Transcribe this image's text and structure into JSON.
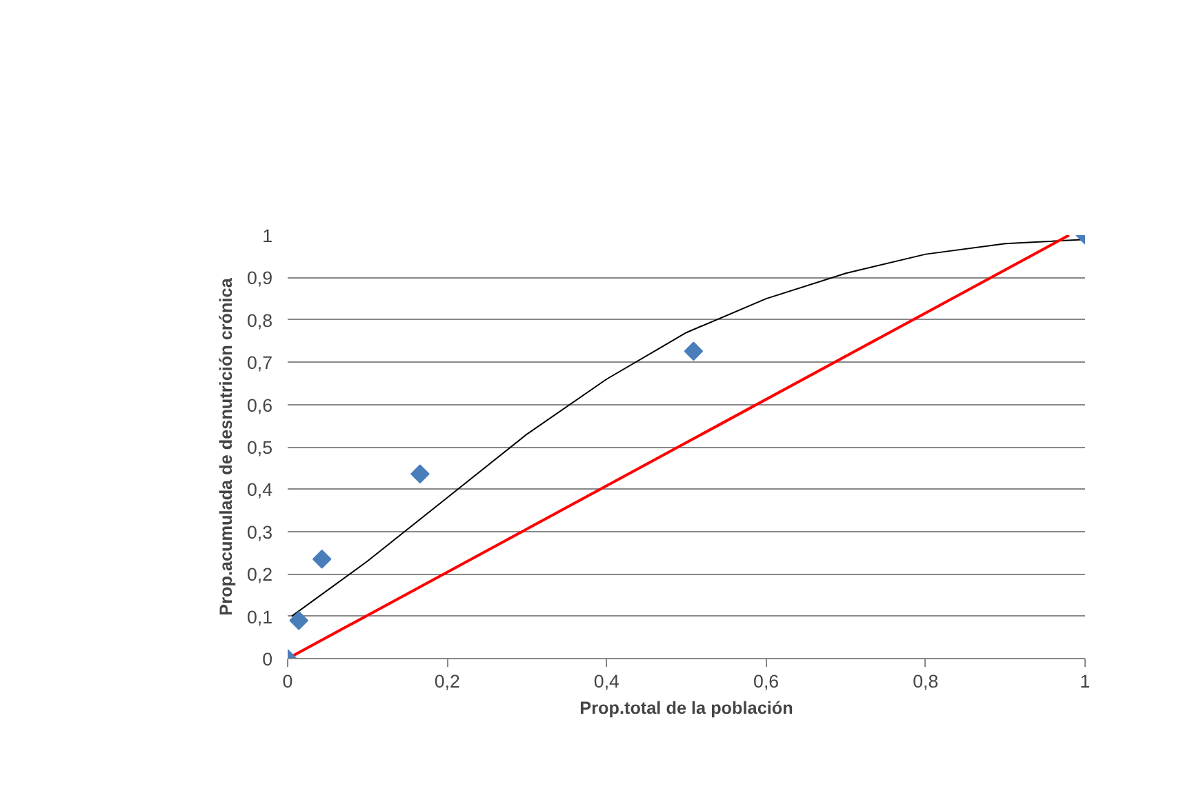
{
  "chart_data": {
    "type": "scatter",
    "xlabel": "Prop.total de la población",
    "ylabel": "Prop.acumulada de desnutrición crónica",
    "xlim": [
      0,
      1
    ],
    "ylim": [
      0,
      1
    ],
    "xticks": [
      0,
      {
        "value": 0.2,
        "label": "0,2"
      },
      {
        "value": 0.4,
        "label": "0,4"
      },
      {
        "value": 0.6,
        "label": "0,6"
      },
      {
        "value": 0.8,
        "label": "0,8"
      },
      1
    ],
    "yticks": [
      0,
      {
        "value": 0.1,
        "label": "0,1"
      },
      {
        "value": 0.2,
        "label": "0,2"
      },
      {
        "value": 0.3,
        "label": "0,3"
      },
      {
        "value": 0.4,
        "label": "0,4"
      },
      {
        "value": 0.5,
        "label": "0,5"
      },
      {
        "value": 0.6,
        "label": "0,6"
      },
      {
        "value": 0.7,
        "label": "0,7"
      },
      {
        "value": 0.8,
        "label": "0,8"
      },
      {
        "value": 0.9,
        "label": "0,9"
      },
      1
    ],
    "grid": "y",
    "marker": "diamond",
    "series": [
      {
        "type": "line",
        "marker": "none",
        "color": "#000000",
        "x": [
          0.005,
          0.1,
          0.2,
          0.3,
          0.4,
          0.5,
          0.6,
          0.7,
          0.8,
          0.9,
          1.0
        ],
        "values": [
          0.1,
          0.23,
          0.38,
          0.53,
          0.66,
          0.77,
          0.85,
          0.91,
          0.955,
          0.98,
          0.99
        ]
      },
      {
        "type": "line",
        "marker": "none",
        "color": "#ff0000",
        "x": [
          0,
          0.98
        ],
        "values": [
          0,
          1.0
        ]
      },
      {
        "color": "#4a7ebb",
        "x": [
          0,
          0.014,
          0.043,
          0.166,
          0.509,
          1.0
        ],
        "values": [
          0,
          0.09,
          0.235,
          0.436,
          0.726,
          1.0
        ]
      }
    ]
  }
}
